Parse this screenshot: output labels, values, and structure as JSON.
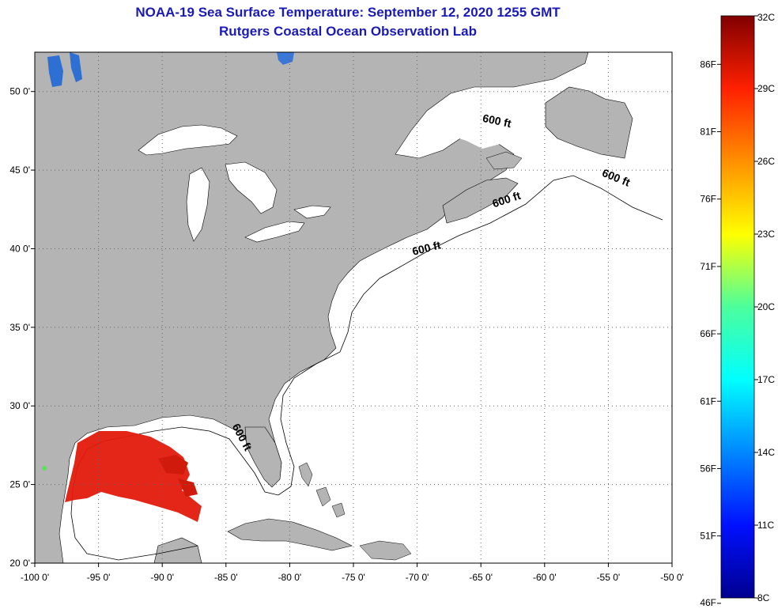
{
  "title": {
    "line1": "NOAA-19 Sea Surface Temperature:  September 12, 2020 1255 GMT",
    "line2": "Rutgers Coastal Ocean Observation Lab"
  },
  "colors": {
    "title": "#1a1ab8",
    "land": "#b4b4b4",
    "water": "#ffffff",
    "grid": "#666666",
    "sst_warm": "#e21a0c"
  },
  "map": {
    "lon_range": [
      -100,
      -50
    ],
    "lat_range": [
      20,
      52.5
    ],
    "lon_ticks": [
      {
        "v": -100,
        "label": "-100 0'"
      },
      {
        "v": -95,
        "label": "-95 0'"
      },
      {
        "v": -90,
        "label": "-90 0'"
      },
      {
        "v": -85,
        "label": "-85 0'"
      },
      {
        "v": -80,
        "label": "-80 0'"
      },
      {
        "v": -75,
        "label": "-75 0'"
      },
      {
        "v": -70,
        "label": "-70 0'"
      },
      {
        "v": -65,
        "label": "-65 0'"
      },
      {
        "v": -60,
        "label": "-60 0'"
      },
      {
        "v": -55,
        "label": "-55 0'"
      },
      {
        "v": -50,
        "label": "-50 0'"
      }
    ],
    "lat_ticks": [
      {
        "v": 50,
        "label": "50 0'"
      },
      {
        "v": 45,
        "label": "45 0'"
      },
      {
        "v": 40,
        "label": "40 0'"
      },
      {
        "v": 35,
        "label": "35 0'"
      },
      {
        "v": 30,
        "label": "30 0'"
      },
      {
        "v": 25,
        "label": "25 0'"
      },
      {
        "v": 20,
        "label": "20 0'"
      }
    ],
    "contour_labels": [
      {
        "text": "600 ft",
        "lon": -63.8,
        "lat": 47.9,
        "rot": 12
      },
      {
        "text": "600 ft",
        "lon": -54.5,
        "lat": 44.3,
        "rot": 22
      },
      {
        "text": "600 ft",
        "lon": -62.9,
        "lat": 42.9,
        "rot": -18
      },
      {
        "text": "600 ft",
        "lon": -69.2,
        "lat": 39.8,
        "rot": -14
      },
      {
        "text": "600 ft",
        "lon": -84.0,
        "lat": 27.9,
        "rot": 62
      }
    ]
  },
  "colorbar": {
    "c_range": [
      8,
      32
    ],
    "c_labels": [
      "32C",
      "29C",
      "26C",
      "23C",
      "20C",
      "17C",
      "14C",
      "11C",
      "8C"
    ],
    "f_labels": [
      "86F",
      "81F",
      "76F",
      "71F",
      "66F",
      "61F",
      "56F",
      "51F",
      "46F"
    ],
    "f_values": [
      86,
      81,
      76,
      71,
      66,
      61,
      56,
      51,
      46
    ]
  }
}
